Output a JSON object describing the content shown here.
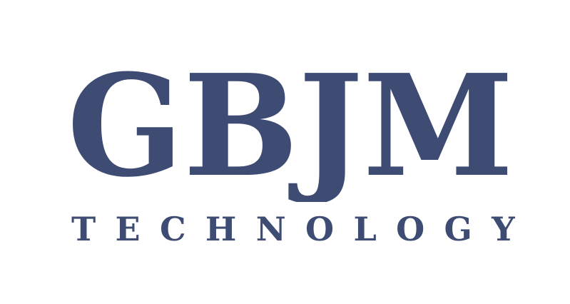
{
  "logo": {
    "wordmark": "GBJM",
    "tagline": "TECHNOLOGY",
    "brand_color": "#3e4c74",
    "background": "#ffffff"
  }
}
